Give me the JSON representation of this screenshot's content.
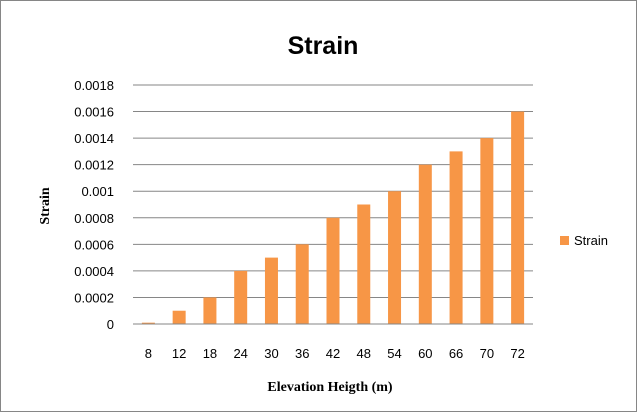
{
  "chart_data": {
    "type": "bar",
    "title": "Strain",
    "xlabel": "Elevation Heigth (m)",
    "ylabel": "Strain",
    "categories": [
      "8",
      "12",
      "18",
      "24",
      "30",
      "36",
      "42",
      "48",
      "54",
      "60",
      "66",
      "70",
      "72"
    ],
    "series": [
      {
        "name": "Strain",
        "color": "#F79646",
        "values": [
          1e-05,
          0.0001,
          0.0002,
          0.0004,
          0.0005,
          0.0006,
          0.0008,
          0.0009,
          0.001,
          0.0012,
          0.0013,
          0.0014,
          0.0016
        ]
      }
    ],
    "ylim": [
      0,
      0.0018
    ],
    "yticks": [
      "0",
      "0.0002",
      "0.0004",
      "0.0006",
      "0.0008",
      "0.001",
      "0.0012",
      "0.0014",
      "0.0016",
      "0.0018"
    ],
    "grid": true,
    "legend_position": "right"
  }
}
